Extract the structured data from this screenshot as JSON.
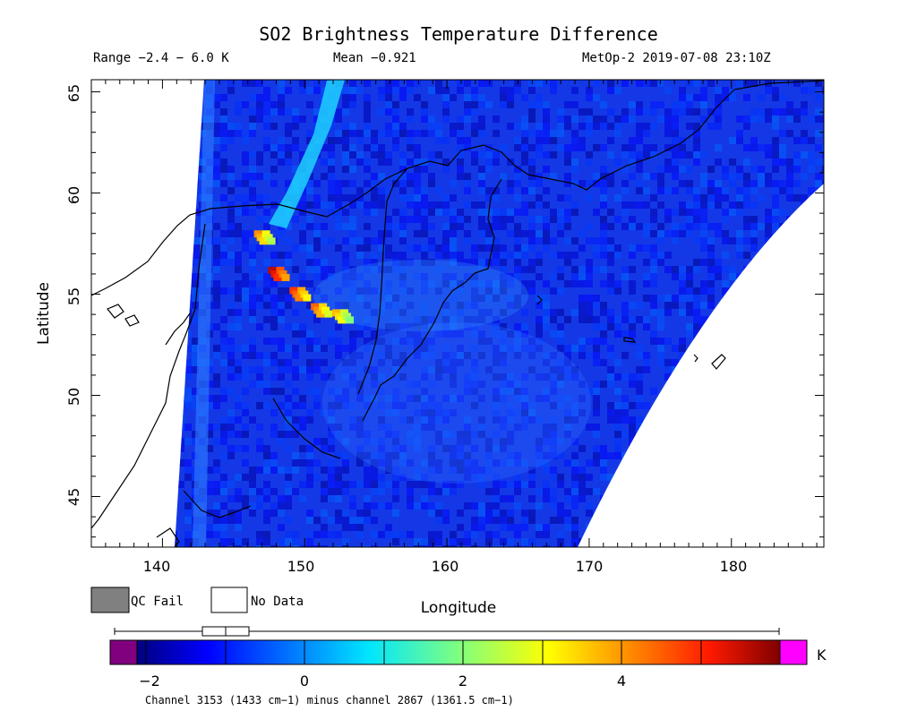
{
  "header": {
    "title": "SO2 Brightness Temperature Difference",
    "range": "Range −2.4 − 6.0 K",
    "mean": "Mean −0.921",
    "satellite": "MetOp-2 2019-07-08 23:10Z"
  },
  "map": {
    "xlabel": "Longitude",
    "ylabel": "Latitude",
    "xticks": [
      "140",
      "150",
      "160",
      "170",
      "180"
    ],
    "yticks": [
      "45",
      "50",
      "55",
      "60",
      "65"
    ],
    "lon_range": [
      135,
      186.5
    ],
    "lat_range": [
      42.5,
      65.6
    ]
  },
  "legend": {
    "qc_fail": "QC Fail",
    "no_data": "No Data",
    "qc_color": "#808080"
  },
  "colorbar": {
    "unit": "K",
    "ticks": [
      "−2",
      "0",
      "2",
      "4"
    ],
    "caption": "Channel 3153 (1433 cm−1) minus channel 2867 (1361.5 cm−1)",
    "range": [
      -2.4,
      6.0
    ],
    "under_color": "#800080",
    "over_color": "#ff00ff"
  },
  "chart_data": {
    "type": "heatmap",
    "title": "SO2 Brightness Temperature Difference",
    "xlabel": "Longitude",
    "ylabel": "Latitude",
    "xlim": [
      135,
      186.5
    ],
    "ylim": [
      42.5,
      65.6
    ],
    "value_range": [
      -2.4,
      6.0
    ],
    "mean": -0.921,
    "unit": "K",
    "plume": [
      {
        "lon": 147.0,
        "lat": 57.8,
        "value": 4.0
      },
      {
        "lon": 148.0,
        "lat": 56.0,
        "value": 5.6
      },
      {
        "lon": 149.5,
        "lat": 55.0,
        "value": 4.8
      },
      {
        "lon": 151.0,
        "lat": 54.2,
        "value": 4.4
      },
      {
        "lon": 152.5,
        "lat": 53.9,
        "value": 3.6
      }
    ]
  }
}
